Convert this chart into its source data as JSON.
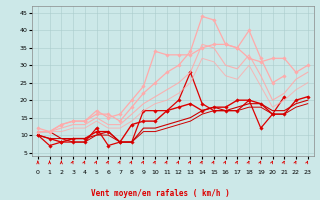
{
  "title": "",
  "xlabel": "Vent moyen/en rafales ( km/h )",
  "ylabel": "",
  "background_color": "#cce8e8",
  "grid_color": "#aacccc",
  "xlim": [
    -0.5,
    23.5
  ],
  "ylim": [
    4,
    47
  ],
  "yticks": [
    5,
    10,
    15,
    20,
    25,
    30,
    35,
    40,
    45
  ],
  "xticks": [
    0,
    1,
    2,
    3,
    4,
    5,
    6,
    7,
    8,
    9,
    10,
    11,
    12,
    13,
    14,
    15,
    16,
    17,
    18,
    19,
    20,
    21,
    22,
    23
  ],
  "lines": [
    {
      "x": [
        0,
        1,
        2,
        3,
        4,
        5,
        6,
        7,
        8,
        9,
        10,
        11,
        12,
        13,
        14,
        15,
        16,
        17,
        18,
        19,
        20,
        21
      ],
      "y": [
        10,
        7,
        8,
        8,
        8,
        12,
        7,
        8,
        8,
        17,
        17,
        17,
        20,
        28,
        19,
        17,
        17,
        17,
        20,
        12,
        16,
        21
      ],
      "color": "#dd0000",
      "linewidth": 0.9,
      "marker": "D",
      "markersize": 1.8,
      "alpha": 1.0
    },
    {
      "x": [
        0,
        1,
        2,
        3,
        4,
        5,
        6,
        7,
        8,
        9,
        10,
        11,
        12,
        13,
        14,
        15,
        16,
        17,
        18,
        19,
        20,
        21,
        22,
        23
      ],
      "y": [
        10,
        9,
        8,
        9,
        9,
        11,
        11,
        8,
        13,
        14,
        14,
        17,
        18,
        19,
        17,
        18,
        18,
        20,
        20,
        19,
        16,
        16,
        20,
        21
      ],
      "color": "#dd0000",
      "linewidth": 1.0,
      "marker": "D",
      "markersize": 1.8,
      "alpha": 1.0
    },
    {
      "x": [
        0,
        1,
        2,
        3,
        4,
        5,
        6,
        7,
        8,
        9,
        10,
        11,
        12,
        13,
        14,
        15,
        16,
        17,
        18,
        19,
        20,
        21,
        22,
        23
      ],
      "y": [
        11,
        11,
        9,
        9,
        9,
        10,
        11,
        8,
        8,
        12,
        12,
        13,
        14,
        15,
        17,
        18,
        17,
        18,
        19,
        19,
        17,
        17,
        19,
        20
      ],
      "color": "#cc0000",
      "linewidth": 0.8,
      "marker": null,
      "markersize": 0,
      "alpha": 1.0
    },
    {
      "x": [
        0,
        1,
        2,
        3,
        4,
        5,
        6,
        7,
        8,
        9,
        10,
        11,
        12,
        13,
        14,
        15,
        16,
        17,
        18,
        19,
        20,
        21,
        22,
        23
      ],
      "y": [
        10,
        9,
        9,
        8,
        8,
        10,
        10,
        8,
        8,
        11,
        11,
        12,
        13,
        14,
        16,
        17,
        17,
        17,
        18,
        18,
        16,
        16,
        18,
        19
      ],
      "color": "#cc0000",
      "linewidth": 0.7,
      "marker": null,
      "markersize": 0,
      "alpha": 1.0
    },
    {
      "x": [
        0,
        1,
        2,
        3,
        4,
        5,
        6,
        7,
        8,
        9,
        10,
        11,
        12,
        13,
        14,
        15,
        16,
        17,
        18,
        19,
        20,
        21,
        22,
        23
      ],
      "y": [
        11,
        11,
        13,
        14,
        14,
        17,
        15,
        16,
        20,
        24,
        34,
        33,
        33,
        33,
        35,
        36,
        36,
        35,
        32,
        31,
        32,
        32,
        28,
        30
      ],
      "color": "#ffaaaa",
      "linewidth": 0.9,
      "marker": "D",
      "markersize": 1.8,
      "alpha": 1.0
    },
    {
      "x": [
        0,
        1,
        2,
        3,
        4,
        5,
        6,
        7,
        8,
        9,
        10,
        11,
        12,
        13,
        14,
        15,
        16,
        17,
        18,
        19,
        20,
        21
      ],
      "y": [
        12,
        11,
        13,
        14,
        14,
        16,
        16,
        14,
        18,
        22,
        25,
        28,
        30,
        34,
        44,
        43,
        36,
        35,
        40,
        32,
        25,
        27
      ],
      "color": "#ffaaaa",
      "linewidth": 0.9,
      "marker": "D",
      "markersize": 1.8,
      "alpha": 1.0
    },
    {
      "x": [
        0,
        1,
        2,
        3,
        4,
        5,
        6,
        7,
        8,
        9,
        10,
        11,
        12,
        13,
        14,
        15,
        16,
        17,
        18,
        19,
        20,
        21,
        22,
        23
      ],
      "y": [
        11,
        11,
        12,
        13,
        13,
        15,
        13,
        13,
        16,
        19,
        21,
        23,
        25,
        28,
        36,
        35,
        30,
        29,
        33,
        27,
        20,
        22,
        26,
        28
      ],
      "color": "#ffaaaa",
      "linewidth": 0.8,
      "marker": null,
      "markersize": 0,
      "alpha": 0.9
    },
    {
      "x": [
        0,
        1,
        2,
        3,
        4,
        5,
        6,
        7,
        8,
        9,
        10,
        11,
        12,
        13,
        14,
        15,
        16,
        17,
        18,
        19,
        20,
        21,
        22,
        23
      ],
      "y": [
        11,
        11,
        11,
        12,
        12,
        14,
        12,
        12,
        14,
        17,
        19,
        20,
        22,
        25,
        32,
        31,
        27,
        26,
        30,
        24,
        18,
        20,
        23,
        25
      ],
      "color": "#ffaaaa",
      "linewidth": 0.7,
      "marker": null,
      "markersize": 0,
      "alpha": 0.8
    }
  ]
}
